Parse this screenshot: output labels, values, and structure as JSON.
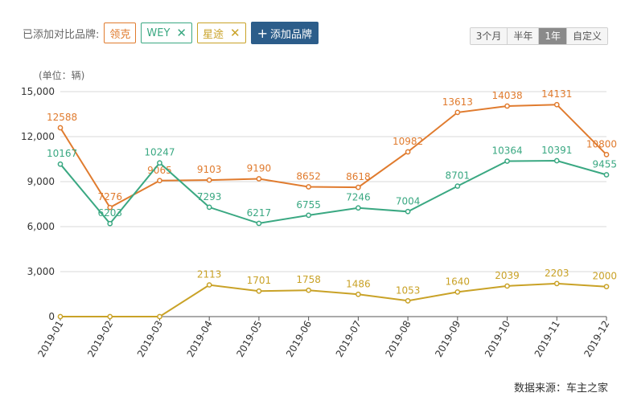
{
  "toolbar": {
    "label": "已添加对比品牌:",
    "brands": [
      {
        "label": "领克",
        "color": "#e07b2e",
        "closable": false
      },
      {
        "label": "WEY",
        "color": "#3aa882",
        "closable": true
      },
      {
        "label": "星途",
        "color": "#c9a227",
        "closable": true
      }
    ],
    "close_glyph": "✕",
    "add_icon": "+",
    "add_label": "添加品牌",
    "periods": [
      "3个月",
      "半年",
      "1年",
      "自定义"
    ],
    "active_period": "1年"
  },
  "source_note": "数据来源：车主之家",
  "chart_data": {
    "type": "line",
    "unit_label": "(单位：辆)",
    "categories": [
      "2019-01",
      "2019-02",
      "2019-03",
      "2019-04",
      "2019-05",
      "2019-06",
      "2019-07",
      "2019-08",
      "2019-09",
      "2019-10",
      "2019-11",
      "2019-12"
    ],
    "yticks": [
      "0",
      "3,000",
      "6,000",
      "9,000",
      "12,000",
      "15,000"
    ],
    "ylim": [
      0,
      15000
    ],
    "grid": true,
    "series": [
      {
        "name": "领克",
        "color": "#e07b2e",
        "values": [
          12588,
          7276,
          9065,
          9103,
          9190,
          8652,
          8618,
          10982,
          13613,
          14038,
          14131,
          10800
        ],
        "labels": [
          "12588",
          "7276",
          "9065",
          "9103",
          "9190",
          "8652",
          "8618",
          "10982",
          "13613",
          "14038",
          "14131",
          "10800"
        ]
      },
      {
        "name": "WEY",
        "color": "#3aa882",
        "values": [
          10167,
          6203,
          10247,
          7293,
          6217,
          6755,
          7246,
          7004,
          8701,
          10364,
          10391,
          9455
        ],
        "labels": [
          "10167",
          "6203",
          "10247",
          "7293",
          "6217",
          "6755",
          "7246",
          "7004",
          "8701",
          "10364",
          "10391",
          "9455"
        ]
      },
      {
        "name": "星途",
        "color": "#c9a227",
        "values": [
          0,
          0,
          0,
          2113,
          1701,
          1758,
          1486,
          1053,
          1640,
          2039,
          2203,
          2000
        ],
        "labels": [
          "",
          "",
          "",
          "2113",
          "1701",
          "1758",
          "1486",
          "1053",
          "1640",
          "2039",
          "2203",
          "2000"
        ]
      }
    ]
  }
}
